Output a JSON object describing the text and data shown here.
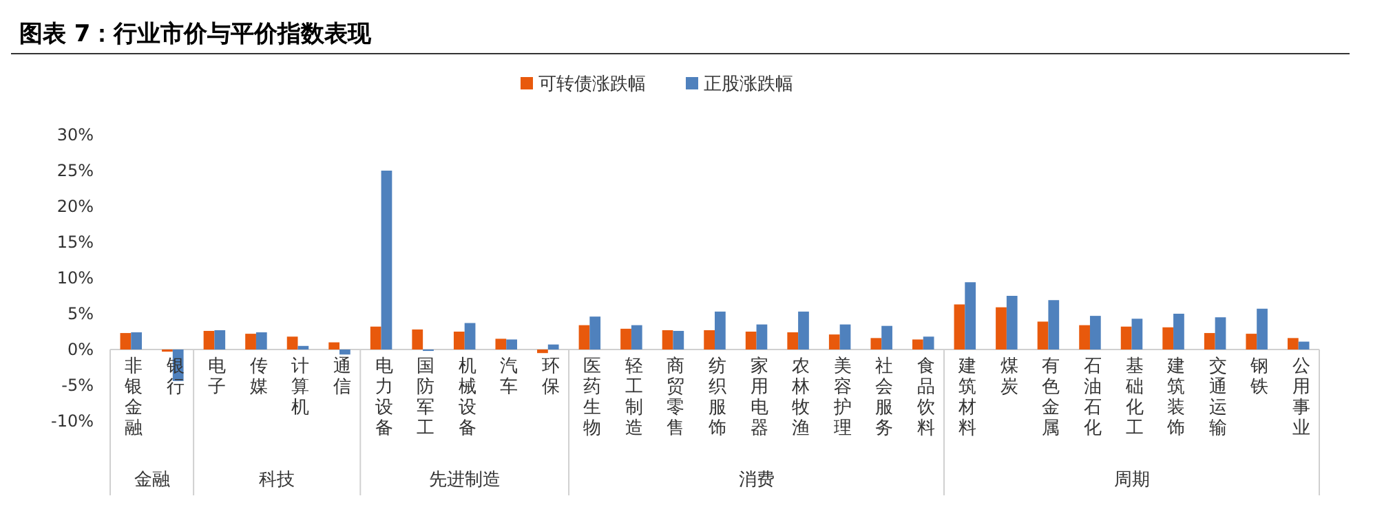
{
  "chart_data": {
    "type": "bar",
    "title": "图表 7：行业市价与平价指数表现",
    "categories": [
      "非银金融",
      "银行",
      "电子",
      "传媒",
      "计算机",
      "通信",
      "电力设备",
      "国防军工",
      "机械设备",
      "汽车",
      "环保",
      "医药生物",
      "轻工制造",
      "商贸零售",
      "纺织服饰",
      "家用电器",
      "农林牧渔",
      "美容护理",
      "社会服务",
      "食品饮料",
      "建筑材料",
      "煤炭",
      "有色金属",
      "石油石化",
      "基础化工",
      "建筑装饰",
      "交通运输",
      "钢铁",
      "公用事业"
    ],
    "series": [
      {
        "name": "可转债涨跌幅",
        "color": "#e8590c",
        "values": [
          2.3,
          -0.3,
          2.6,
          2.2,
          1.8,
          1.0,
          3.2,
          2.8,
          2.5,
          1.5,
          -0.5,
          3.4,
          2.9,
          2.7,
          2.7,
          2.5,
          2.4,
          2.1,
          1.6,
          1.4,
          6.3,
          5.9,
          3.9,
          3.4,
          3.2,
          3.1,
          2.3,
          2.2,
          1.6
        ]
      },
      {
        "name": "正股涨跌幅",
        "color": "#4f81bd",
        "values": [
          2.4,
          -4.4,
          2.7,
          2.4,
          0.5,
          -0.7,
          25.0,
          -0.2,
          3.7,
          1.4,
          0.7,
          4.6,
          3.4,
          2.6,
          5.3,
          3.5,
          5.3,
          3.5,
          3.3,
          1.8,
          9.4,
          7.5,
          6.9,
          4.7,
          4.3,
          5.0,
          4.5,
          5.7,
          1.1
        ]
      }
    ],
    "ylim": [
      -10,
      30
    ],
    "yticks": [
      {
        "value": -10,
        "label": "-10%"
      },
      {
        "value": -5,
        "label": "-5%"
      },
      {
        "value": 0,
        "label": "0%"
      },
      {
        "value": 5,
        "label": "5%"
      },
      {
        "value": 10,
        "label": "10%"
      },
      {
        "value": 15,
        "label": "15%"
      },
      {
        "value": 20,
        "label": "20%"
      },
      {
        "value": 25,
        "label": "25%"
      },
      {
        "value": 30,
        "label": "30%"
      }
    ],
    "grid": false,
    "legend": "top",
    "annotations": [
      "金融",
      "科技",
      "先进制造",
      "消费",
      "周期"
    ]
  }
}
